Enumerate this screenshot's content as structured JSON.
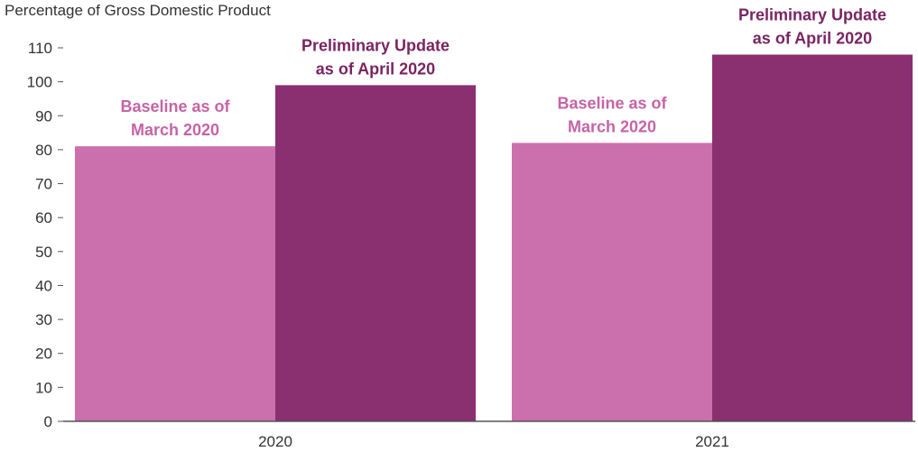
{
  "chart_data": {
    "type": "bar",
    "unit_label": "Percentage of Gross Domestic Product",
    "categories": [
      "2020",
      "2021"
    ],
    "series": [
      {
        "name": "Baseline as of March 2020",
        "label_lines": [
          "Baseline as of",
          "March 2020"
        ],
        "color": "#cc6fad",
        "values": [
          81,
          82
        ]
      },
      {
        "name": "Preliminary Update as of April 2020",
        "label_lines": [
          "Preliminary Update",
          "as of April 2020"
        ],
        "color": "#8a2f70",
        "values": [
          99,
          108
        ]
      }
    ],
    "yticks": [
      0,
      10,
      20,
      30,
      40,
      50,
      60,
      70,
      80,
      90,
      100,
      110
    ],
    "ylim": [
      0,
      110
    ],
    "grid": false,
    "legend": "none",
    "label_colors": [
      "#c564a6",
      "#7a2462"
    ],
    "axis_color": "#555555"
  }
}
